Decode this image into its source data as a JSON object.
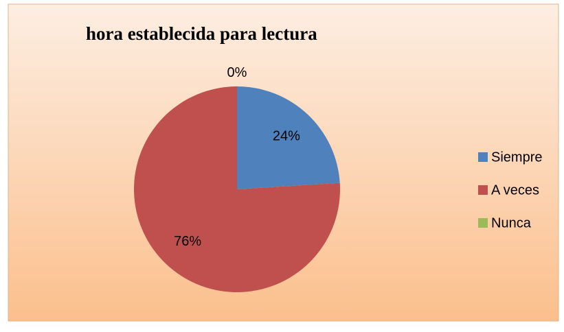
{
  "chart_data": {
    "type": "pie",
    "title": "hora establecida para lectura",
    "categories": [
      "Siempre",
      "A veces",
      "Nunca"
    ],
    "values": [
      24,
      76,
      0
    ],
    "value_labels": [
      "24%",
      "76%",
      "0%"
    ],
    "colors": [
      "#4f81bd",
      "#c0504d",
      "#9bbb59"
    ],
    "legend": "right"
  }
}
